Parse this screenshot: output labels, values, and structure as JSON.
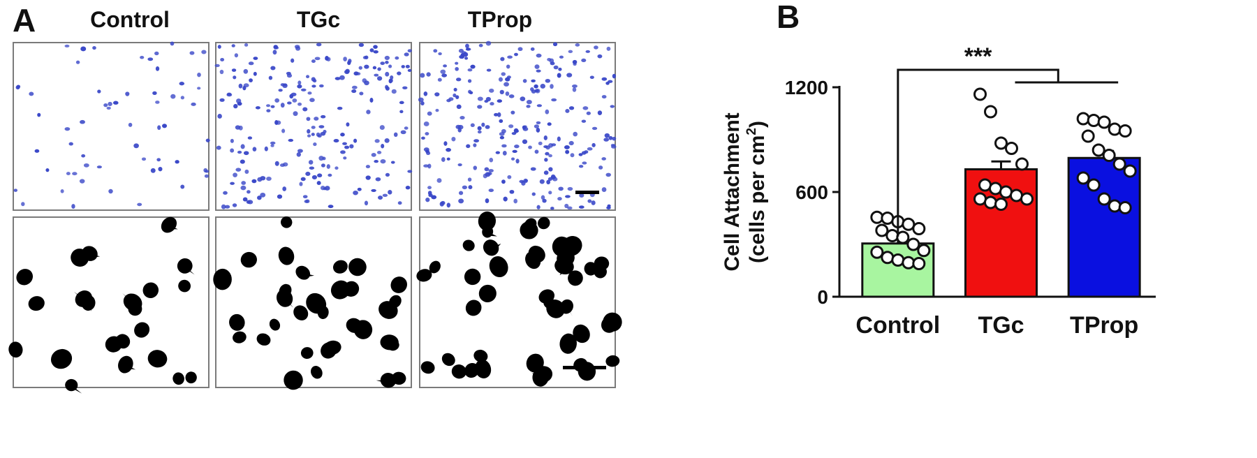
{
  "panels": {
    "a": "A",
    "b": "B"
  },
  "conditions": [
    "Control",
    "TGc",
    "TProp"
  ],
  "chart_data": {
    "type": "bar",
    "categories": [
      "Control",
      "TGc",
      "TProp"
    ],
    "values": [
      305,
      730,
      795
    ],
    "error": [
      30,
      45,
      40
    ],
    "points": [
      [
        455,
        450,
        430,
        415,
        390,
        380,
        350,
        340,
        300,
        265,
        255,
        225,
        210,
        195,
        190
      ],
      [
        1160,
        1060,
        880,
        850,
        760,
        640,
        620,
        600,
        580,
        560,
        560,
        540,
        530
      ],
      [
        1020,
        1010,
        1000,
        960,
        950,
        920,
        840,
        810,
        760,
        720,
        680,
        640,
        560,
        520,
        510
      ]
    ],
    "colors": [
      "#a8f5a0",
      "#f01010",
      "#0a10e0"
    ],
    "ylabel_line1": "Cell Attachment",
    "ylabel_line2_prefix": "(cells per cm",
    "ylabel_line2_sup": "2",
    "ylabel_line2_suffix": ")",
    "yticks": [
      0,
      600,
      1200
    ],
    "ylim": [
      0,
      1200
    ],
    "significance": "***"
  }
}
